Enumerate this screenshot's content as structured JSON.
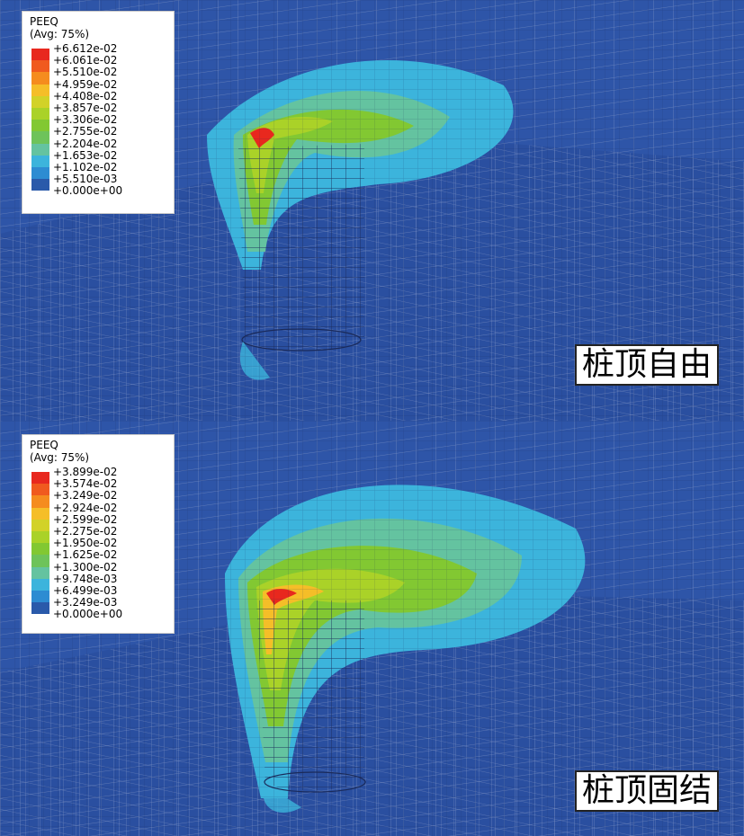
{
  "panels": [
    {
      "legend_title": "PEEQ",
      "legend_subtitle": "(Avg: 75%)",
      "legend_values": [
        "+6.612e-02",
        "+6.061e-02",
        "+5.510e-02",
        "+4.959e-02",
        "+4.408e-02",
        "+3.857e-02",
        "+3.306e-02",
        "+2.755e-02",
        "+2.204e-02",
        "+1.653e-02",
        "+1.102e-02",
        "+5.510e-03",
        "+0.000e+00"
      ],
      "caption": "桩顶自由"
    },
    {
      "legend_title": "PEEQ",
      "legend_subtitle": "(Avg: 75%)",
      "legend_values": [
        "+3.899e-02",
        "+3.574e-02",
        "+3.249e-02",
        "+2.924e-02",
        "+2.599e-02",
        "+2.275e-02",
        "+1.950e-02",
        "+1.625e-02",
        "+1.300e-02",
        "+9.748e-03",
        "+6.499e-03",
        "+3.249e-03",
        "+0.000e+00"
      ],
      "caption": "桩顶固结"
    }
  ],
  "legend_colors": [
    "#e8281e",
    "#f05a1e",
    "#f58c1e",
    "#f5be28",
    "#d2d228",
    "#aad228",
    "#82c832",
    "#6ec35a",
    "#64c3a0",
    "#3cb4dc",
    "#2d8cd2",
    "#2a5aaa"
  ]
}
